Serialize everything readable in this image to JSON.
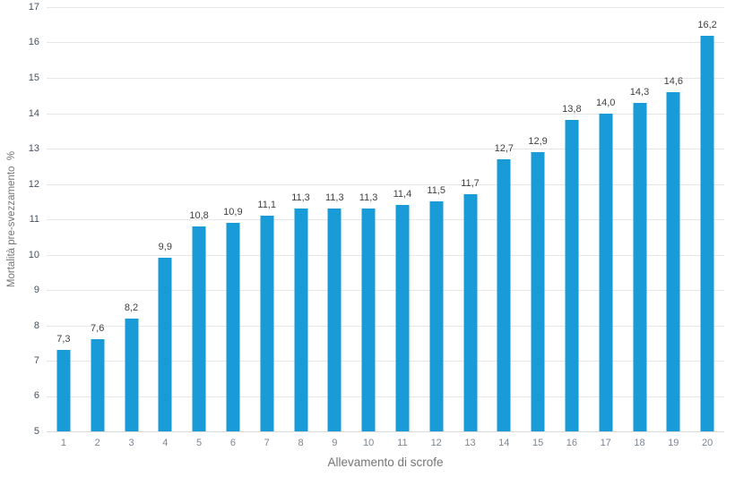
{
  "chart_data": {
    "type": "bar",
    "xlabel": "Allevamento di scrofe",
    "ylabel": "Mortalità pre-svezzamento  %",
    "categories": [
      "1",
      "2",
      "3",
      "4",
      "5",
      "6",
      "7",
      "8",
      "9",
      "10",
      "11",
      "12",
      "13",
      "14",
      "15",
      "16",
      "17",
      "18",
      "19",
      "20"
    ],
    "values": [
      7.3,
      7.6,
      8.2,
      9.9,
      10.8,
      10.9,
      11.1,
      11.3,
      11.3,
      11.3,
      11.4,
      11.5,
      11.7,
      12.7,
      12.9,
      13.8,
      14.0,
      14.3,
      14.6,
      16.2
    ],
    "value_labels": [
      "7,3",
      "7,6",
      "8,2",
      "9,9",
      "10,8",
      "10,9",
      "11,1",
      "11,3",
      "11,3",
      "11,3",
      "11,4",
      "11,5",
      "11,7",
      "12,7",
      "12,9",
      "13,8",
      "14,0",
      "14,3",
      "14,6",
      "16,2"
    ],
    "ylim": [
      5,
      17
    ],
    "ytick_step": 1,
    "ytick_labels": [
      "5",
      "6",
      "7",
      "8",
      "9",
      "10",
      "11",
      "12",
      "13",
      "14",
      "15",
      "16",
      "17"
    ],
    "grid": true,
    "legend_position": "none",
    "colors": {
      "bar": "#199bd7",
      "gridline": "#e6e6e6",
      "baseline": "#d9d9d9",
      "y_tick_text": "#46505e",
      "x_tick_text": "#7b8591",
      "data_label_text": "#404040",
      "axis_title_text": "#757575",
      "background": "#ffffff"
    }
  }
}
